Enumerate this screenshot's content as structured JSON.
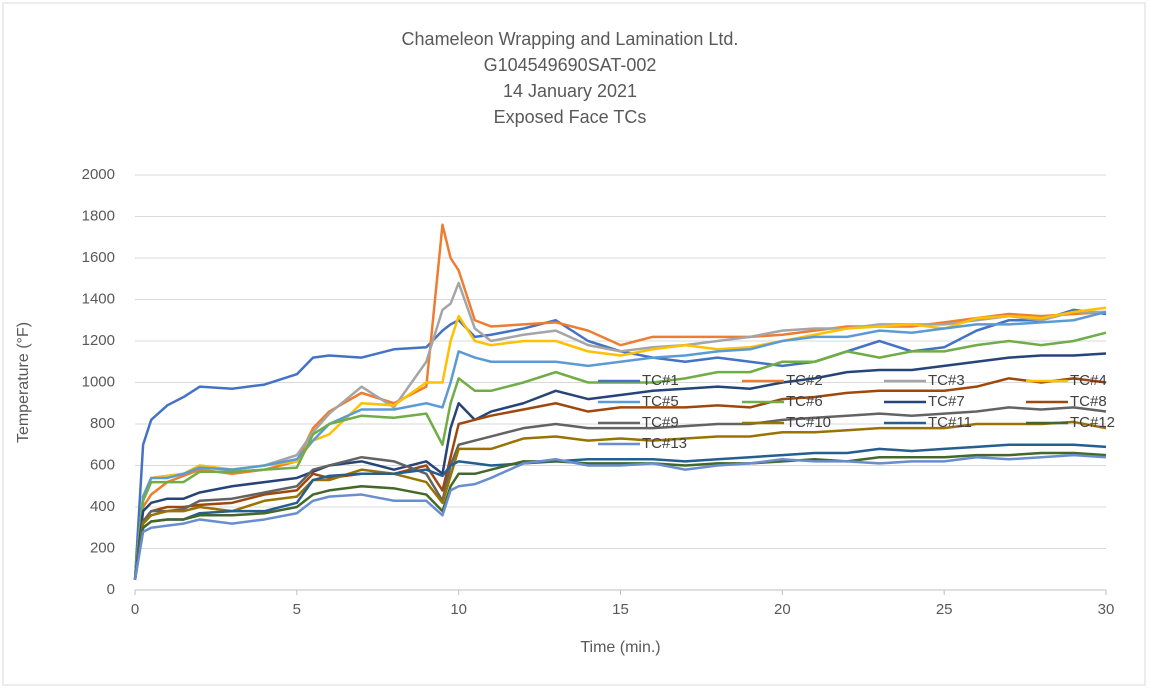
{
  "chart_data": {
    "type": "line",
    "title": [
      "Chameleon Wrapping and Lamination Ltd.",
      "G104549690SAT-002",
      "14 January 2021",
      "Exposed Face TCs"
    ],
    "x_label": "Time (min.)",
    "y_label": "Temperature (°F)",
    "xlim": [
      0,
      30
    ],
    "xticks": [
      0,
      5,
      10,
      15,
      20,
      25,
      30
    ],
    "ylim": [
      0,
      2000
    ],
    "yticks": [
      0,
      200,
      400,
      600,
      800,
      1000,
      1200,
      1400,
      1600,
      1800,
      2000
    ],
    "grid": true,
    "legend": "lower right",
    "x": [
      0,
      0.25,
      0.5,
      1,
      1.5,
      2,
      3,
      4,
      5,
      5.5,
      6,
      7,
      8,
      9,
      9.5,
      9.75,
      10,
      10.5,
      11,
      12,
      13,
      14,
      15,
      16,
      17,
      18,
      19,
      20,
      21,
      22,
      23,
      24,
      25,
      26,
      27,
      28,
      29,
      30
    ],
    "series": [
      {
        "name": "TC#1",
        "color": "#4472c4",
        "values": [
          50,
          700,
          820,
          890,
          930,
          980,
          970,
          990,
          1040,
          1120,
          1130,
          1120,
          1160,
          1170,
          1250,
          1280,
          1300,
          1220,
          1230,
          1260,
          1300,
          1200,
          1150,
          1120,
          1100,
          1120,
          1100,
          1080,
          1100,
          1150,
          1200,
          1150,
          1170,
          1250,
          1300,
          1300,
          1350,
          1330
        ]
      },
      {
        "name": "TC#2",
        "color": "#ed7d31",
        "values": [
          50,
          400,
          460,
          520,
          550,
          580,
          560,
          580,
          620,
          780,
          860,
          950,
          900,
          980,
          1760,
          1600,
          1540,
          1300,
          1270,
          1280,
          1290,
          1250,
          1180,
          1220,
          1220,
          1220,
          1220,
          1230,
          1250,
          1270,
          1270,
          1270,
          1290,
          1310,
          1330,
          1320,
          1330,
          1340
        ]
      },
      {
        "name": "TC#3",
        "color": "#a5a5a5",
        "values": [
          50,
          450,
          540,
          550,
          560,
          600,
          580,
          600,
          650,
          760,
          850,
          980,
          880,
          1100,
          1350,
          1380,
          1480,
          1260,
          1200,
          1230,
          1250,
          1180,
          1150,
          1170,
          1180,
          1200,
          1220,
          1250,
          1260,
          1260,
          1280,
          1280,
          1280,
          1300,
          1320,
          1300,
          1340,
          1340
        ]
      },
      {
        "name": "TC#4",
        "color": "#ffc000",
        "values": [
          50,
          450,
          540,
          550,
          560,
          600,
          580,
          600,
          620,
          720,
          750,
          900,
          890,
          1000,
          1000,
          1200,
          1320,
          1200,
          1180,
          1200,
          1200,
          1150,
          1130,
          1160,
          1180,
          1160,
          1170,
          1200,
          1230,
          1260,
          1270,
          1280,
          1260,
          1310,
          1320,
          1310,
          1340,
          1360
        ]
      },
      {
        "name": "TC#5",
        "color": "#5b9bd5",
        "values": [
          50,
          450,
          540,
          540,
          560,
          590,
          580,
          600,
          630,
          720,
          800,
          870,
          870,
          900,
          880,
          1000,
          1150,
          1120,
          1100,
          1100,
          1100,
          1080,
          1100,
          1120,
          1130,
          1150,
          1160,
          1200,
          1220,
          1220,
          1250,
          1240,
          1260,
          1280,
          1280,
          1290,
          1300,
          1340
        ]
      },
      {
        "name": "TC#6",
        "color": "#70ad47",
        "values": [
          50,
          430,
          520,
          520,
          520,
          570,
          570,
          580,
          590,
          750,
          800,
          840,
          830,
          850,
          700,
          900,
          1020,
          960,
          960,
          1000,
          1050,
          1000,
          1000,
          1000,
          1020,
          1050,
          1050,
          1100,
          1100,
          1150,
          1120,
          1150,
          1150,
          1180,
          1200,
          1180,
          1200,
          1240
        ]
      },
      {
        "name": "TC#7",
        "color": "#264478",
        "values": [
          50,
          380,
          420,
          440,
          440,
          470,
          500,
          520,
          540,
          570,
          600,
          620,
          580,
          620,
          560,
          780,
          900,
          820,
          860,
          900,
          960,
          920,
          940,
          960,
          970,
          980,
          970,
          1000,
          1020,
          1050,
          1060,
          1060,
          1080,
          1100,
          1120,
          1130,
          1130,
          1140
        ]
      },
      {
        "name": "TC#8",
        "color": "#9e480e",
        "values": [
          50,
          330,
          380,
          400,
          400,
          410,
          420,
          460,
          480,
          560,
          540,
          560,
          560,
          600,
          480,
          640,
          800,
          820,
          840,
          870,
          900,
          860,
          880,
          880,
          880,
          890,
          880,
          920,
          930,
          950,
          960,
          960,
          960,
          980,
          1020,
          1000,
          1020,
          1000
        ]
      },
      {
        "name": "TC#9",
        "color": "#636363",
        "values": [
          50,
          330,
          380,
          380,
          390,
          430,
          440,
          470,
          500,
          580,
          600,
          640,
          620,
          560,
          430,
          600,
          700,
          720,
          740,
          780,
          800,
          780,
          780,
          780,
          790,
          800,
          800,
          820,
          830,
          840,
          850,
          840,
          850,
          860,
          880,
          870,
          880,
          860
        ]
      },
      {
        "name": "TC#10",
        "color": "#997300",
        "values": [
          50,
          320,
          360,
          380,
          380,
          400,
          380,
          430,
          450,
          530,
          530,
          580,
          560,
          520,
          420,
          550,
          680,
          680,
          680,
          730,
          740,
          720,
          730,
          720,
          730,
          740,
          740,
          760,
          760,
          770,
          780,
          780,
          780,
          800,
          800,
          800,
          810,
          780
        ]
      },
      {
        "name": "TC#11",
        "color": "#255e91",
        "values": [
          50,
          300,
          330,
          340,
          340,
          370,
          380,
          380,
          420,
          530,
          550,
          560,
          560,
          580,
          550,
          600,
          620,
          610,
          600,
          610,
          620,
          630,
          630,
          630,
          620,
          630,
          640,
          650,
          660,
          660,
          680,
          670,
          680,
          690,
          700,
          700,
          700,
          690
        ]
      },
      {
        "name": "TC#12",
        "color": "#43682b",
        "values": [
          50,
          300,
          330,
          340,
          340,
          360,
          360,
          370,
          400,
          460,
          480,
          500,
          490,
          460,
          380,
          500,
          560,
          560,
          580,
          620,
          620,
          610,
          610,
          610,
          600,
          610,
          610,
          620,
          630,
          620,
          640,
          640,
          640,
          650,
          650,
          660,
          660,
          650
        ]
      },
      {
        "name": "TC#13",
        "color": "#698ed0",
        "values": [
          50,
          280,
          300,
          310,
          320,
          340,
          320,
          340,
          370,
          430,
          450,
          460,
          430,
          430,
          360,
          480,
          500,
          510,
          540,
          610,
          630,
          600,
          600,
          610,
          580,
          600,
          610,
          630,
          620,
          620,
          610,
          620,
          620,
          640,
          630,
          640,
          650,
          640
        ]
      }
    ]
  }
}
